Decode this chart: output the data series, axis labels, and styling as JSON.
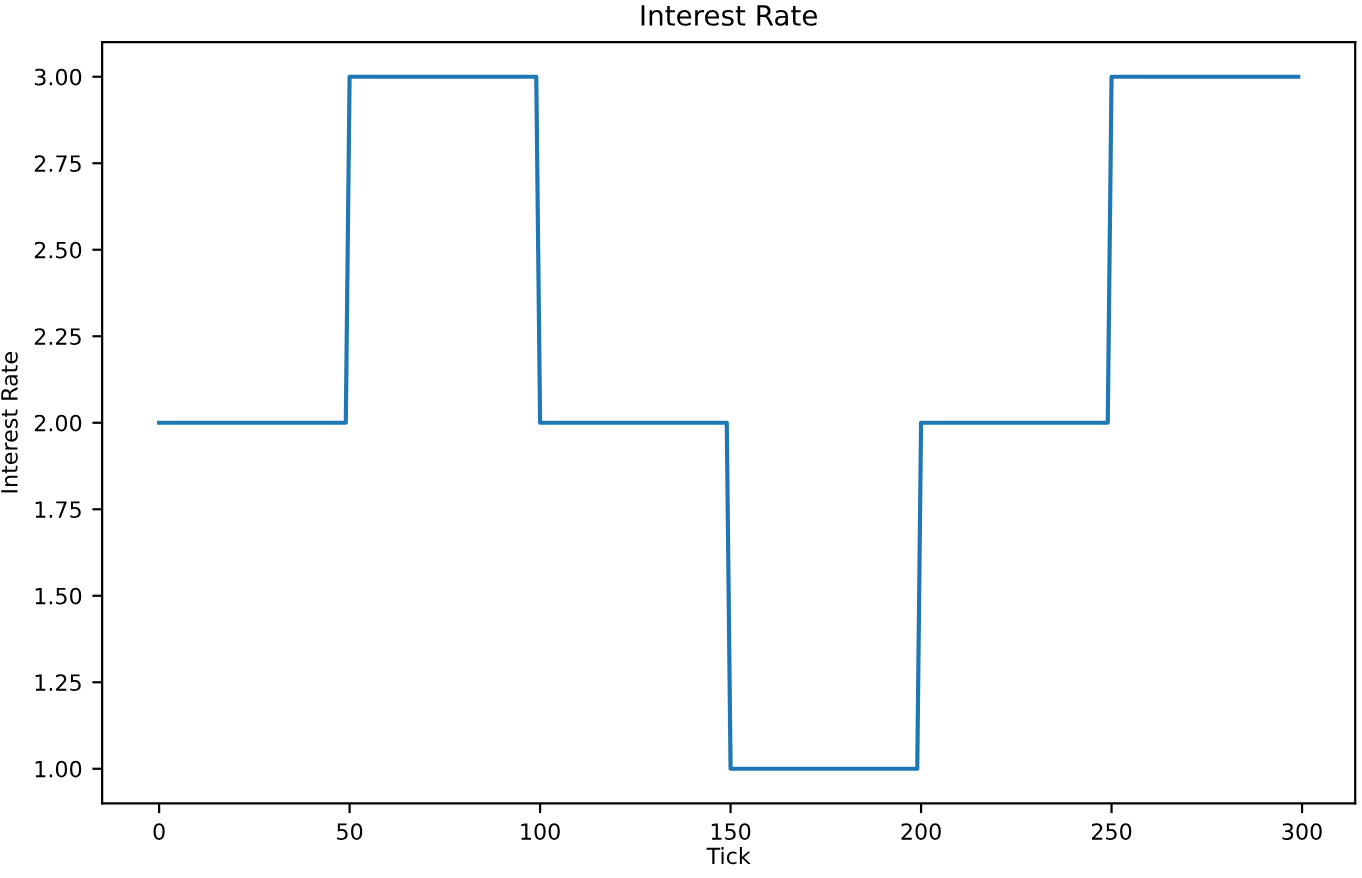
{
  "chart_data": {
    "type": "line",
    "title": "Interest Rate",
    "xlabel": "Tick",
    "ylabel": "Interest Rate",
    "series": [
      {
        "color": "#1f77b4",
        "x": [
          0,
          49,
          50,
          99,
          100,
          149,
          150,
          199,
          200,
          249,
          250,
          299
        ],
        "values": [
          2,
          2,
          3,
          3,
          2,
          2,
          1,
          1,
          2,
          2,
          3,
          3
        ]
      }
    ],
    "xlim": [
      -14.95,
      313.95
    ],
    "ylim": [
      0.9,
      3.1
    ],
    "xticks": [
      0,
      50,
      100,
      150,
      200,
      250,
      300
    ],
    "yticks": [
      {
        "value": 1,
        "label": "1.00"
      },
      {
        "value": 1.25,
        "label": "1.25"
      },
      {
        "value": 1.5,
        "label": "1.50"
      },
      {
        "value": 1.75,
        "label": "1.75"
      },
      {
        "value": 2,
        "label": "2.00"
      },
      {
        "value": 2.25,
        "label": "2.25"
      },
      {
        "value": 2.5,
        "label": "2.50"
      },
      {
        "value": 2.75,
        "label": "2.75"
      },
      {
        "value": 3,
        "label": "3.00"
      }
    ],
    "grid": false,
    "legend": false
  }
}
